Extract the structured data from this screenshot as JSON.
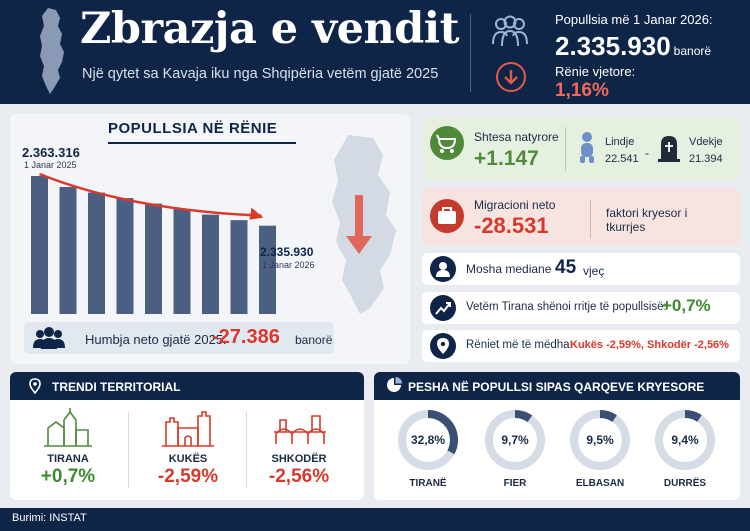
{
  "header": {
    "title": "Zbrazja e vendit",
    "subtitle": "Një qytet sa Kavaja iku nga Shqipëria vetëm gjatë 2025",
    "pop_label": "Popullsia më 1 Janar 2026:",
    "pop_value": "2.335.930",
    "pop_unit": "banorë",
    "decline_label": "Rënie vjetore:",
    "decline_value": "1,16%"
  },
  "main": {
    "title": "POPULLSIA NË RËNIE",
    "start_value": "2.363.316",
    "start_date": "1 Janar 2025",
    "end_value": "2.335.930",
    "end_date": "1 Janar 2026",
    "loss_text": "Humbja neto gjatë 2025:",
    "loss_value": "-27.386",
    "loss_unit": "banorë"
  },
  "natural": {
    "label": "Shtesa natyrore",
    "value": "+1.147",
    "birth_label": "Lindje",
    "birth_value": "22.541",
    "dash": "-",
    "death_label": "Vdekje",
    "death_value": "21.394"
  },
  "migration": {
    "label": "Migracioni neto",
    "value": "-28.531",
    "note": "faktori kryesor i tkurrjes"
  },
  "median_age": {
    "label": "Mosha mediane",
    "value": "45",
    "unit": "vjeç"
  },
  "tirana_growth": {
    "label": "Vetëm Tirana shënoi rritje të popullsisë:",
    "value": "+0,7%"
  },
  "biggest_decline": {
    "label": "Rëniet më të mëdha:",
    "value": "Kukës -2,59%, Shkodër -2,56%"
  },
  "trend": {
    "title": "TRENDI TERRITORIAL",
    "cities": [
      {
        "name": "TIRANA",
        "value": "+0,7%"
      },
      {
        "name": "KUKËS",
        "value": "-2,59%"
      },
      {
        "name": "SHKODËR",
        "value": "-2,56%"
      }
    ]
  },
  "share": {
    "title": "PESHA NË POPULLSI SIPAS QARQEVE KRYESORE",
    "items": [
      {
        "name": "TIRANË",
        "label": "32,8%",
        "value": 32.8
      },
      {
        "name": "FIER",
        "label": "9,7%",
        "value": 9.7
      },
      {
        "name": "ELBASAN",
        "label": "9,5%",
        "value": 9.5
      },
      {
        "name": "DURRËS",
        "label": "9,4%",
        "value": 9.4
      }
    ]
  },
  "footer": {
    "source": "Burimi: INSTAT"
  },
  "colors": {
    "navy": "#0f2547",
    "red": "#d8392b",
    "green": "#4f8a3a",
    "bar": "#4a5f82"
  },
  "chart_data": {
    "type": "bar",
    "title": "POPULLSIA NË RËNIE",
    "values": [
      100,
      92,
      88,
      84,
      80,
      76,
      72,
      68,
      64
    ],
    "annotations": [
      {
        "text": "2.363.316",
        "date": "1 Janar 2025"
      },
      {
        "text": "2.335.930",
        "date": "1 Janar 2026"
      }
    ]
  }
}
